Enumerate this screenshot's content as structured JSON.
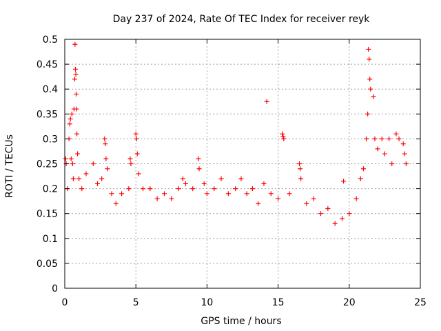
{
  "chart_data": {
    "type": "scatter",
    "title": "Day 237 of 2024, Rate Of TEC Index for receiver reyk",
    "xlabel": "GPS time / hours",
    "ylabel": "ROTI / TECUs",
    "xlim": [
      0,
      25
    ],
    "ylim": [
      0,
      0.5
    ],
    "x_ticks": [
      "0",
      "5",
      "10",
      "15",
      "20",
      "25"
    ],
    "y_ticks": [
      "0",
      "0.05",
      "0.1",
      "0.15",
      "0.2",
      "0.25",
      "0.3",
      "0.35",
      "0.4",
      "0.45",
      "0.5"
    ],
    "grid": true,
    "marker": "+",
    "color": "#ff0000",
    "series": [
      {
        "points": [
          [
            0.05,
            0.26
          ],
          [
            0.1,
            0.25
          ],
          [
            0.2,
            0.2
          ],
          [
            0.3,
            0.3
          ],
          [
            0.35,
            0.33
          ],
          [
            0.4,
            0.34
          ],
          [
            0.45,
            0.26
          ],
          [
            0.5,
            0.35
          ],
          [
            0.55,
            0.25
          ],
          [
            0.6,
            0.22
          ],
          [
            0.65,
            0.36
          ],
          [
            0.7,
            0.42
          ],
          [
            0.72,
            0.49
          ],
          [
            0.75,
            0.44
          ],
          [
            0.78,
            0.43
          ],
          [
            0.8,
            0.39
          ],
          [
            0.82,
            0.36
          ],
          [
            0.85,
            0.31
          ],
          [
            0.9,
            0.27
          ],
          [
            1.0,
            0.22
          ],
          [
            1.2,
            0.2
          ],
          [
            1.5,
            0.23
          ],
          [
            2.0,
            0.25
          ],
          [
            2.3,
            0.21
          ],
          [
            2.6,
            0.22
          ],
          [
            2.8,
            0.3
          ],
          [
            2.85,
            0.29
          ],
          [
            2.9,
            0.26
          ],
          [
            3.0,
            0.24
          ],
          [
            3.3,
            0.19
          ],
          [
            3.6,
            0.17
          ],
          [
            4.0,
            0.19
          ],
          [
            4.5,
            0.2
          ],
          [
            4.6,
            0.26
          ],
          [
            4.65,
            0.25
          ],
          [
            5.0,
            0.31
          ],
          [
            5.05,
            0.3
          ],
          [
            5.1,
            0.27
          ],
          [
            5.2,
            0.23
          ],
          [
            5.5,
            0.2
          ],
          [
            6.0,
            0.2
          ],
          [
            6.5,
            0.18
          ],
          [
            7.0,
            0.19
          ],
          [
            7.5,
            0.18
          ],
          [
            8.0,
            0.2
          ],
          [
            8.3,
            0.22
          ],
          [
            8.5,
            0.21
          ],
          [
            9.0,
            0.2
          ],
          [
            9.4,
            0.26
          ],
          [
            9.45,
            0.24
          ],
          [
            9.8,
            0.21
          ],
          [
            10.0,
            0.19
          ],
          [
            10.5,
            0.2
          ],
          [
            11.0,
            0.22
          ],
          [
            11.5,
            0.19
          ],
          [
            12.0,
            0.2
          ],
          [
            12.4,
            0.22
          ],
          [
            12.8,
            0.19
          ],
          [
            13.2,
            0.2
          ],
          [
            13.6,
            0.17
          ],
          [
            14.0,
            0.21
          ],
          [
            14.2,
            0.375
          ],
          [
            14.5,
            0.19
          ],
          [
            15.0,
            0.18
          ],
          [
            15.3,
            0.31
          ],
          [
            15.35,
            0.305
          ],
          [
            15.4,
            0.3
          ],
          [
            15.8,
            0.19
          ],
          [
            16.5,
            0.25
          ],
          [
            16.55,
            0.24
          ],
          [
            16.6,
            0.22
          ],
          [
            17.0,
            0.17
          ],
          [
            17.5,
            0.18
          ],
          [
            18.0,
            0.15
          ],
          [
            18.5,
            0.16
          ],
          [
            19.0,
            0.13
          ],
          [
            19.5,
            0.14
          ],
          [
            19.6,
            0.215
          ],
          [
            20.0,
            0.15
          ],
          [
            20.5,
            0.18
          ],
          [
            20.8,
            0.22
          ],
          [
            21.0,
            0.24
          ],
          [
            21.2,
            0.3
          ],
          [
            21.3,
            0.35
          ],
          [
            21.35,
            0.48
          ],
          [
            21.4,
            0.46
          ],
          [
            21.45,
            0.42
          ],
          [
            21.5,
            0.4
          ],
          [
            21.7,
            0.385
          ],
          [
            21.8,
            0.3
          ],
          [
            22.0,
            0.28
          ],
          [
            22.3,
            0.3
          ],
          [
            22.5,
            0.27
          ],
          [
            22.8,
            0.3
          ],
          [
            23.0,
            0.25
          ],
          [
            23.3,
            0.31
          ],
          [
            23.5,
            0.3
          ],
          [
            23.8,
            0.29
          ],
          [
            23.9,
            0.27
          ],
          [
            24.0,
            0.25
          ]
        ]
      }
    ]
  }
}
